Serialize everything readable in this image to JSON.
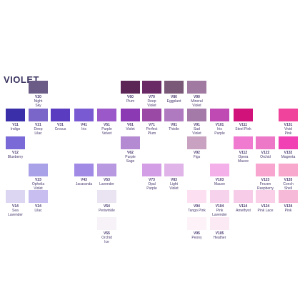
{
  "title": "VIOLET",
  "swatches": [
    {
      "code": "V20",
      "name": "Night\nSky",
      "color": "#6a5c86"
    },
    {
      "code": "V60",
      "name": "Plum",
      "color": "#5b2555"
    },
    {
      "code": "V70",
      "name": "Deep\nViolet",
      "color": "#6a2a66"
    },
    {
      "code": "V80",
      "name": "Eggplant",
      "color": "#7a5878"
    },
    {
      "code": "V90",
      "name": "Mineral\nViolet",
      "color": "#a07aa0"
    },
    {
      "code": "V11",
      "name": "Indigo",
      "color": "#3a2fa8"
    },
    {
      "code": "V21",
      "name": "Deep\nLilac",
      "color": "#7a66c8"
    },
    {
      "code": "V31",
      "name": "Crocus",
      "color": "#5a3cc0"
    },
    {
      "code": "V41",
      "name": "Iris",
      "color": "#7a5ad2"
    },
    {
      "code": "V51",
      "name": "Purple\nVelvet",
      "color": "#9a58c8"
    },
    {
      "code": "V61",
      "name": "Violet",
      "color": "#8c3ab4"
    },
    {
      "code": "V71",
      "name": "Perfect\nPlum",
      "color": "#9a4aa4"
    },
    {
      "code": "V81",
      "name": "Thistle",
      "color": "#b07ac0"
    },
    {
      "code": "V91",
      "name": "Sad\nViolet",
      "color": "#a47aa8"
    },
    {
      "code": "V101",
      "name": "Iris\nPurple",
      "color": "#c04ab4"
    },
    {
      "code": "V111",
      "name": "Steel Pink",
      "color": "#d0127a"
    },
    {
      "code": "V131",
      "name": "Vivid\nPink",
      "color": "#f0449c"
    },
    {
      "code": "V12",
      "name": "Blueberry",
      "color": "#7a6ad8"
    },
    {
      "code": "V62",
      "name": "Purple\nSage",
      "color": "#b48ad2"
    },
    {
      "code": "V92",
      "name": "Figs",
      "color": "#c8a2c0"
    },
    {
      "code": "V112",
      "name": "Opera\nMauve",
      "color": "#f07ad0"
    },
    {
      "code": "V122",
      "name": "Orchid",
      "color": "#ee78c8"
    },
    {
      "code": "V132",
      "name": "Magenta",
      "color": "#f040b4"
    },
    {
      "code": "V23",
      "name": "Ophelia\nViolet",
      "color": "#aaa2e8"
    },
    {
      "code": "V43",
      "name": "Jacaranda",
      "color": "#a08ae6"
    },
    {
      "code": "V53",
      "name": "Lavender",
      "color": "#b898e0"
    },
    {
      "code": "V73",
      "name": "Opal\nPurple",
      "color": "#d49ee6"
    },
    {
      "code": "V83",
      "name": "Light\nViolet",
      "color": "#e0b4e8"
    },
    {
      "code": "V103",
      "name": "Mauve",
      "color": "#f4b0e8"
    },
    {
      "code": "V123",
      "name": "Frozen\nRaspberry",
      "color": "#f8a6d0"
    },
    {
      "code": "V133",
      "name": "Conch\nShell",
      "color": "#f8a8cc"
    },
    {
      "code": "V14",
      "name": "Sea\nLavender",
      "color": "#dcd6f2"
    },
    {
      "code": "V24",
      "name": "Lilac",
      "color": "#c8bef0"
    },
    {
      "code": "V54",
      "name": "Periwinkle",
      "color": "#eae4f2"
    },
    {
      "code": "V94",
      "name": "Tango Pink",
      "color": "#fce0f2"
    },
    {
      "code": "V104",
      "name": "Pink\nLavender",
      "color": "#f6d2ec"
    },
    {
      "code": "V114",
      "name": "Amethyst",
      "color": "#f6cce8"
    },
    {
      "code": "V124",
      "name": "Pink Lace",
      "color": "#fad0e8"
    },
    {
      "code": "V134",
      "name": "Pink",
      "color": "#f6bad8"
    },
    {
      "code": "V55",
      "name": "Orchid\nIce",
      "color": "#f6f2f8"
    },
    {
      "code": "V95",
      "name": "Peony",
      "color": "#fcf2f8"
    },
    {
      "code": "V105",
      "name": "Heather",
      "color": "#fbeaf4"
    }
  ]
}
